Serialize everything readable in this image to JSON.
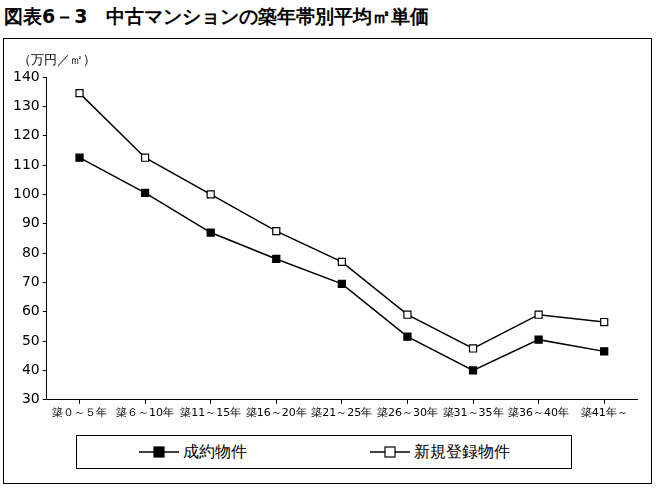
{
  "chart_data": {
    "type": "line",
    "title": "図表6－3　中古マンションの築年帯別平均㎡単価",
    "y_label": "（万円／㎡）",
    "categories": [
      "築０～５年",
      "築６～10年",
      "築11～15年",
      "築16～20年",
      "築21～25年",
      "築26～30年",
      "築31～35年",
      "築36～40年",
      "築41年～"
    ],
    "series": [
      {
        "name": "成約物件",
        "color": "#000000",
        "marker": "filled_square",
        "values": [
          112.5,
          100.5,
          87,
          78,
          69.5,
          51.5,
          40,
          50.5,
          46.5
        ]
      },
      {
        "name": "新規登録物件",
        "color": "#000000",
        "marker": "open_square",
        "values": [
          134.5,
          112.5,
          100,
          87.5,
          77,
          59,
          47.5,
          59,
          56.5
        ]
      }
    ],
    "ylim": [
      30,
      140
    ],
    "yticks": [
      30,
      40,
      50,
      60,
      70,
      80,
      90,
      100,
      110,
      120,
      130,
      140
    ],
    "grid": false,
    "legend": "bottom"
  }
}
